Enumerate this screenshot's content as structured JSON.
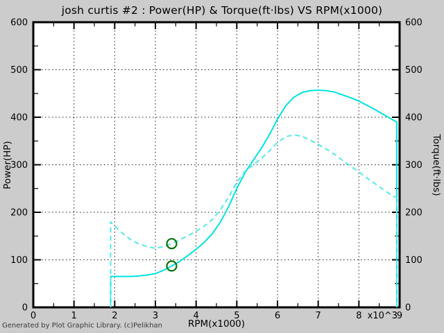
{
  "title": "josh curtis #2 : Power(HP) & Torque(ft·lbs) VS RPM(x1000)",
  "footer": "Generated by Plot Graphic Library. (c)Pelikhan",
  "axes": {
    "left_label": "Power(HP)",
    "right_label": "Torque(ft·lbs)",
    "x_label": "RPM(x1000)",
    "exponent_label": "x10^3",
    "y_tick_labels": [
      "0",
      "100",
      "200",
      "300",
      "400",
      "500",
      "600"
    ],
    "x_tick_labels": [
      "0",
      "1",
      "2",
      "3",
      "4",
      "5",
      "6",
      "7",
      "8",
      "9"
    ]
  },
  "colors": {
    "background": "#cccccc",
    "plot_background": "#ffffff",
    "frame": "#000000",
    "grid": "#1a1a1a",
    "curve_solid": "#00e2e2",
    "curve_dashed": "#55e9e9",
    "marker": "#0a700a"
  },
  "chart_data": {
    "type": "line",
    "title": "josh curtis #2 : Power(HP) & Torque(ft·lbs) VS RPM(x1000)",
    "xlabel": "RPM(x1000)",
    "ylabel_left": "Power(HP)",
    "ylabel_right": "Torque(ft·lbs)",
    "xlim": [
      0,
      9
    ],
    "ylim": [
      0,
      600
    ],
    "x_major_tick": 1,
    "x_minor_tick": 0.5,
    "y_major_tick": 100,
    "y_minor_tick": 50,
    "grid": "dotted",
    "legend": "none",
    "series": [
      {
        "name": "Power (HP)",
        "style": "solid",
        "x": [
          1.9,
          1.9,
          2.0,
          2.2,
          2.4,
          2.6,
          2.8,
          3.0,
          3.2,
          3.4,
          3.6,
          3.8,
          4.0,
          4.2,
          4.4,
          4.6,
          4.8,
          5.0,
          5.2,
          5.4,
          5.6,
          5.8,
          6.0,
          6.2,
          6.4,
          6.6,
          6.8,
          7.0,
          7.2,
          7.4,
          7.6,
          7.8,
          8.0,
          8.2,
          8.4,
          8.6,
          8.8,
          8.93,
          8.93
        ],
        "values": [
          0,
          65,
          65,
          65,
          65,
          66,
          68,
          71,
          78,
          87,
          97,
          109,
          122,
          137,
          155,
          180,
          212,
          250,
          283,
          309,
          334,
          363,
          396,
          424,
          442,
          452,
          456,
          457,
          456,
          453,
          447,
          441,
          434,
          425,
          416,
          406,
          396,
          390,
          0
        ]
      },
      {
        "name": "Torque (ft·lbs)",
        "style": "dashed",
        "x": [
          1.9,
          1.9,
          2.0,
          2.2,
          2.4,
          2.6,
          2.8,
          3.0,
          3.2,
          3.4,
          3.6,
          3.8,
          4.0,
          4.2,
          4.4,
          4.6,
          4.8,
          5.0,
          5.2,
          5.4,
          5.6,
          5.8,
          6.0,
          6.2,
          6.4,
          6.6,
          6.8,
          7.0,
          7.2,
          7.4,
          7.6,
          7.8,
          8.0,
          8.2,
          8.4,
          8.6,
          8.8,
          8.93,
          8.93
        ],
        "values": [
          0,
          180,
          171,
          155,
          142,
          133,
          128,
          124,
          128,
          134,
          142,
          151,
          160,
          171,
          185,
          206,
          232,
          263,
          286,
          300,
          313,
          329,
          347,
          359,
          363,
          360,
          352,
          343,
          333,
          322,
          309,
          297,
          285,
          272,
          260,
          248,
          236,
          231,
          0
        ]
      }
    ],
    "markers": [
      {
        "series": "Torque (ft·lbs)",
        "x": 3.4,
        "y": 134,
        "shape": "ring"
      },
      {
        "series": "Power (HP)",
        "x": 3.4,
        "y": 87,
        "shape": "ring"
      }
    ]
  }
}
